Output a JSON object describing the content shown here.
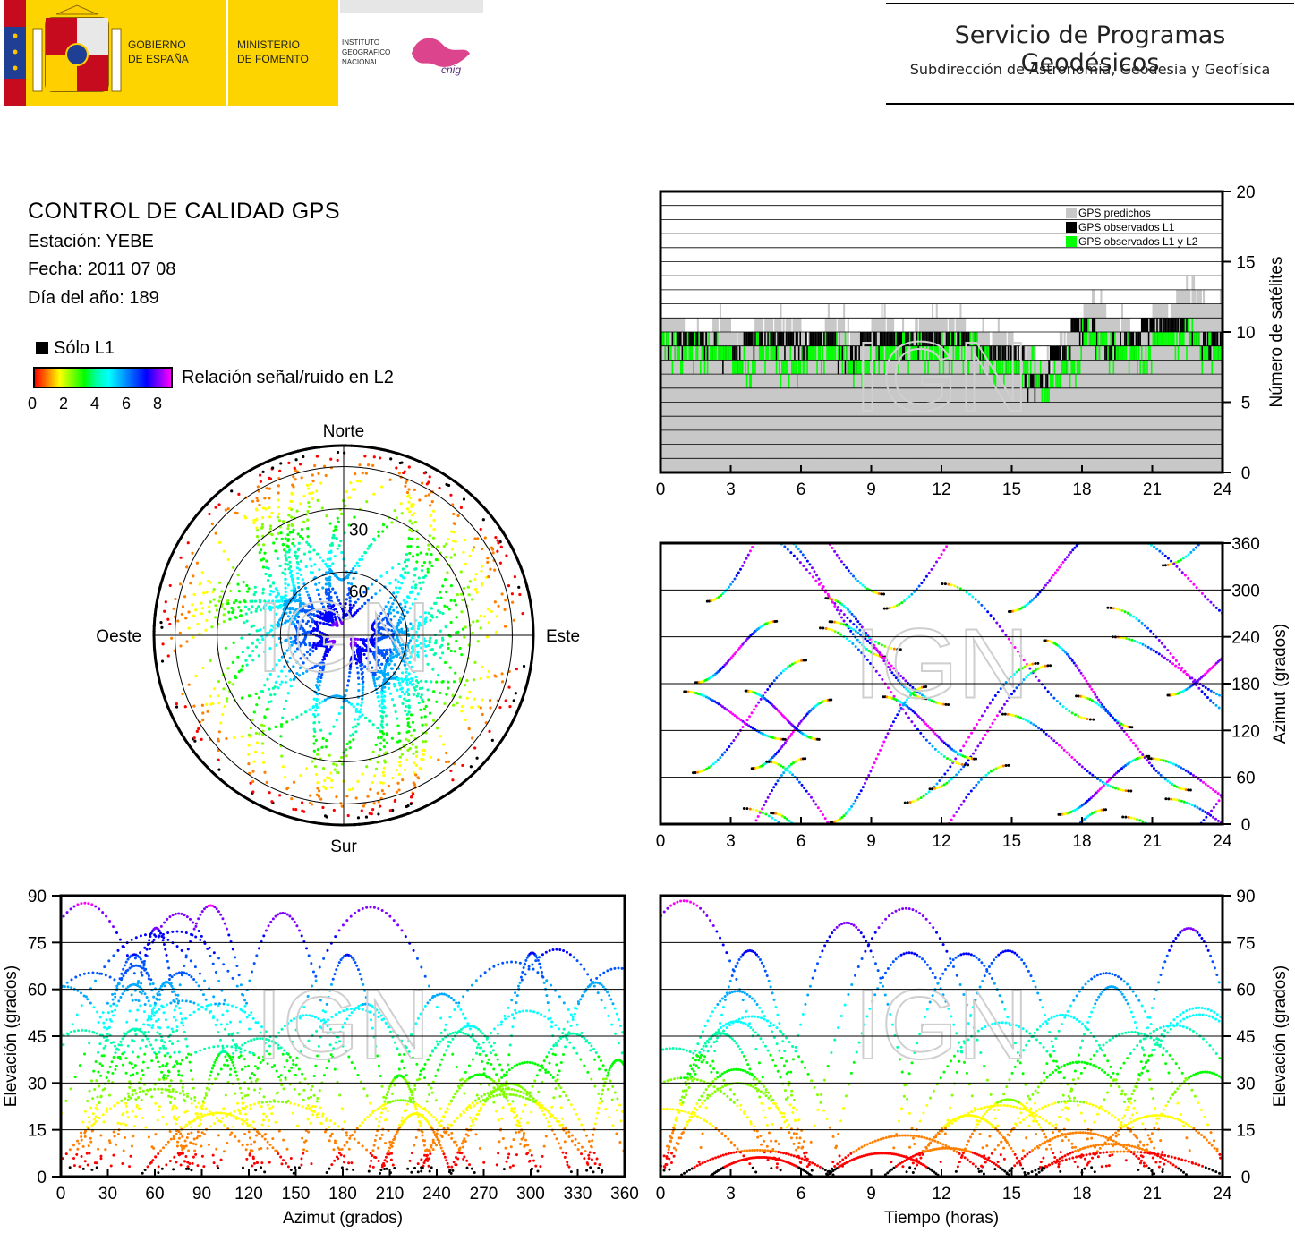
{
  "header": {
    "gov_line1": "GOBIERNO",
    "gov_line2": "DE ESPAÑA",
    "min_line1": "MINISTERIO",
    "min_line2": "DE FOMENTO",
    "inst_line1": "INSTITUTO",
    "inst_line2": "GEOGRÁFICO",
    "inst_line3": "NACIONAL",
    "cnig": "cnig",
    "service_title": "Servicio de Programas Geodésicos",
    "service_subtitle": "Subdirección de Astronomía, Geodesia y Geofísica"
  },
  "info": {
    "title": "CONTROL DE CALIDAD GPS",
    "station": "Estación: YEBE",
    "date": "Fecha: 2011 07 08",
    "day_of_year": "Día del año: 189"
  },
  "legend": {
    "l1_only": "Sólo L1",
    "snr_label": "Relación señal/ruido en L2",
    "snr_ticks": [
      "0",
      "2",
      "4",
      "6",
      "8"
    ]
  },
  "watermark": "IGN",
  "colors": {
    "predicted": "#c8c8c8",
    "observed_l1": "#000000",
    "observed_l1_l2": "#00ff00",
    "frame": "#000000"
  },
  "chart_data": [
    {
      "type": "area",
      "id": "satellite-count",
      "legend": [
        "GPS predichos",
        "GPS observados L1",
        "GPS observados L1 y L2"
      ],
      "legend_position": "top-right",
      "ylabel": "Número de satélites",
      "xlim": [
        0,
        24
      ],
      "ylim": [
        0,
        20
      ],
      "xticks": [
        "0",
        "3",
        "6",
        "9",
        "12",
        "15",
        "18",
        "21",
        "24"
      ],
      "yticks": [
        "0",
        "5",
        "10",
        "15",
        "20"
      ],
      "grid": true,
      "x": [
        0,
        1,
        2,
        3,
        4,
        5,
        6,
        7,
        8,
        9,
        10,
        11,
        12,
        13,
        14,
        15,
        16,
        17,
        18,
        19,
        20,
        21,
        22,
        23,
        24
      ],
      "series": [
        {
          "name": "GPS predichos",
          "values": [
            11,
            10,
            11,
            10,
            11,
            11,
            10,
            11,
            10,
            11,
            10,
            11,
            11,
            10,
            10,
            9,
            8,
            10,
            12,
            11,
            10,
            12,
            13,
            12,
            11
          ]
        },
        {
          "name": "GPS observados L1",
          "values": [
            10,
            10,
            10,
            9,
            10,
            10,
            10,
            10,
            9,
            10,
            10,
            10,
            10,
            10,
            9,
            9,
            7,
            9,
            11,
            10,
            10,
            11,
            11,
            10,
            10
          ]
        },
        {
          "name": "GPS observados L1 y L2",
          "values": [
            9,
            9,
            9,
            8,
            9,
            8,
            9,
            9,
            8,
            9,
            9,
            9,
            9,
            9,
            8,
            8,
            7,
            8,
            10,
            9,
            9,
            10,
            10,
            9,
            9
          ]
        }
      ]
    },
    {
      "type": "scatter",
      "id": "skyplot",
      "direction_labels": {
        "north": "Norte",
        "south": "Sur",
        "west": "Oeste",
        "east": "Este"
      },
      "elevation_rings": [
        "30",
        "60"
      ]
    },
    {
      "type": "scatter",
      "id": "azimuth-vs-time",
      "ylabel": "Azimut (grados)",
      "xlim": [
        0,
        24
      ],
      "ylim": [
        0,
        360
      ],
      "xticks": [
        "0",
        "3",
        "6",
        "9",
        "12",
        "15",
        "18",
        "21",
        "24"
      ],
      "yticks": [
        "0",
        "60",
        "120",
        "180",
        "240",
        "300",
        "360"
      ],
      "grid": true
    },
    {
      "type": "scatter",
      "id": "elevation-vs-azimuth",
      "xlabel": "Azimut (grados)",
      "ylabel": "Elevación (grados)",
      "xlim": [
        0,
        360
      ],
      "ylim": [
        0,
        90
      ],
      "xticks": [
        "0",
        "30",
        "60",
        "90",
        "120",
        "150",
        "180",
        "210",
        "240",
        "270",
        "300",
        "330",
        "360"
      ],
      "yticks": [
        "0",
        "15",
        "30",
        "45",
        "60",
        "75",
        "90"
      ],
      "grid": true
    },
    {
      "type": "scatter",
      "id": "elevation-vs-time",
      "xlabel": "Tiempo (horas)",
      "ylabel": "Elevación (grados)",
      "xlim": [
        0,
        24
      ],
      "ylim": [
        0,
        90
      ],
      "xticks": [
        "0",
        "3",
        "6",
        "9",
        "12",
        "15",
        "18",
        "21",
        "24"
      ],
      "yticks": [
        "0",
        "15",
        "30",
        "45",
        "60",
        "75",
        "90"
      ],
      "grid": true
    }
  ]
}
